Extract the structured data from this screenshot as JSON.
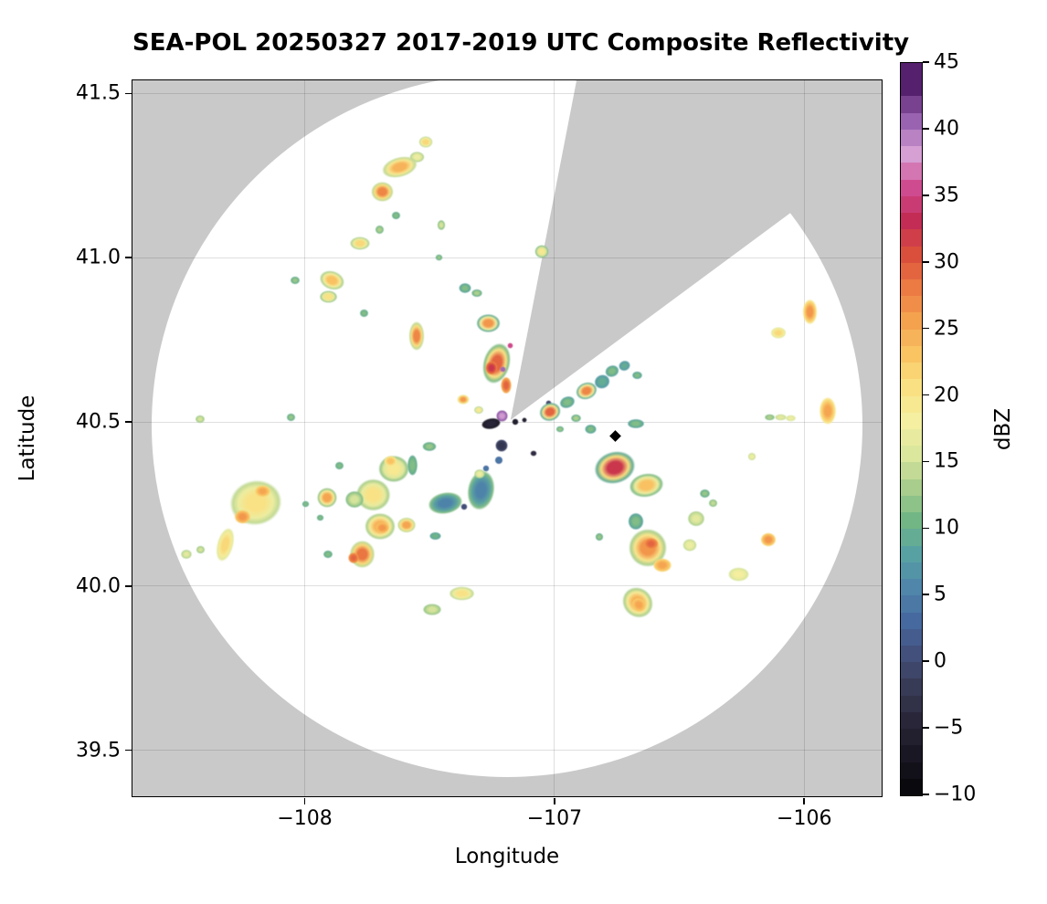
{
  "figure": {
    "title": "SEA-POL 20250327 2017-2019 UTC Composite Reflectivity"
  },
  "chart_data": {
    "type": "radar_ppi_composite",
    "title": "SEA-POL 20250327 2017-2019 UTC Composite Reflectivity",
    "xlabel": "Longitude",
    "ylabel": "Latitude",
    "x_range": [
      -108.69,
      -105.69
    ],
    "y_range": [
      39.36,
      41.54
    ],
    "x_ticks": [
      {
        "value": -108,
        "label": "−108"
      },
      {
        "value": -107,
        "label": "−107"
      },
      {
        "value": -106,
        "label": "−106"
      }
    ],
    "y_ticks": [
      {
        "value": 41.5,
        "label": "41.5"
      },
      {
        "value": 41.0,
        "label": "41.0"
      },
      {
        "value": 40.5,
        "label": "40.5"
      },
      {
        "value": 40.0,
        "label": "40.0"
      },
      {
        "value": 39.5,
        "label": "39.5"
      }
    ],
    "grid": true,
    "background_outside_scan": "#c9c9c9",
    "background_inside_scan": "#ffffff",
    "radar": {
      "center_lon": -107.19,
      "center_lat": 40.49,
      "scan_radius_px": 389,
      "blocked_sector": {
        "apex_lon": -107.176,
        "apex_lat": 40.506,
        "azimuth_start_deg": 11,
        "azimuth_end_deg": 53.5
      },
      "site_marker": {
        "symbol": "diamond",
        "lon": -106.758,
        "lat": 40.458,
        "color": "#000000"
      }
    },
    "colorbar": {
      "label": "dBZ",
      "vmin": -10,
      "vmax": 45,
      "step": 2.5,
      "ticks": [
        {
          "value": 45,
          "label": "45"
        },
        {
          "value": 40,
          "label": "40"
        },
        {
          "value": 35,
          "label": "35"
        },
        {
          "value": 30,
          "label": "30"
        },
        {
          "value": 25,
          "label": "25"
        },
        {
          "value": 20,
          "label": "20"
        },
        {
          "value": 15,
          "label": "15"
        },
        {
          "value": 10,
          "label": "10"
        },
        {
          "value": 5,
          "label": "5"
        },
        {
          "value": 0,
          "label": "0"
        },
        {
          "value": -5,
          "label": "−5"
        },
        {
          "value": -10,
          "label": "−10"
        }
      ],
      "colors": [
        "#0a090d",
        "#1a1724",
        "#29263a",
        "#383b56",
        "#43507c",
        "#46699f",
        "#4f86aa",
        "#58a1a3",
        "#72b685",
        "#a8cd8c",
        "#dbe79d",
        "#f4efa1",
        "#f9e183",
        "#fac463",
        "#f4a24e",
        "#ec7a43",
        "#da4f3c",
        "#c32c55",
        "#cf4b90",
        "#d6a0d4",
        "#9a63b1",
        "#55206e"
      ]
    },
    "echo_fields": [
      "lon",
      "lat",
      "width_px",
      "height_px",
      "core_dbz",
      "edge_dbz",
      "rotation_deg"
    ],
    "echoes": [
      [
        -107.516,
        41.353,
        15,
        13,
        22,
        15,
        0
      ],
      [
        -107.549,
        41.306,
        16,
        12,
        18,
        14,
        0
      ],
      [
        -107.619,
        41.275,
        40,
        22,
        25,
        15,
        -15
      ],
      [
        -107.689,
        41.2,
        24,
        22,
        28,
        15,
        0
      ],
      [
        -107.634,
        41.128,
        9,
        9,
        12,
        10,
        0
      ],
      [
        -107.7,
        41.086,
        10,
        9,
        14,
        11,
        0
      ],
      [
        -107.454,
        41.1,
        9,
        11,
        16,
        12,
        0
      ],
      [
        -107.78,
        41.044,
        22,
        15,
        22,
        14,
        0
      ],
      [
        -107.462,
        41.0,
        8,
        7,
        13,
        10,
        0
      ],
      [
        -107.051,
        41.019,
        15,
        15,
        20,
        12,
        0
      ],
      [
        -108.04,
        40.931,
        10,
        9,
        13,
        10,
        0
      ],
      [
        -107.89,
        40.931,
        28,
        20,
        24,
        14,
        20
      ],
      [
        -107.905,
        40.881,
        20,
        14,
        21,
        13,
        0
      ],
      [
        -107.762,
        40.831,
        9,
        9,
        12,
        10,
        0
      ],
      [
        -107.553,
        40.761,
        17,
        32,
        28,
        15,
        0
      ],
      [
        -105.978,
        40.836,
        16,
        28,
        27,
        20,
        0
      ],
      [
        -106.103,
        40.772,
        17,
        13,
        22,
        17,
        0
      ],
      [
        -107.359,
        40.908,
        14,
        11,
        12,
        9,
        0
      ],
      [
        -107.311,
        40.892,
        12,
        9,
        14,
        10,
        0
      ],
      [
        -107.264,
        40.8,
        26,
        20,
        27,
        10,
        0
      ],
      [
        -107.231,
        40.678,
        30,
        46,
        30,
        12,
        15
      ],
      [
        -107.253,
        40.664,
        14,
        16,
        33,
        28,
        0
      ],
      [
        -107.176,
        40.731,
        6,
        6,
        36,
        36,
        0
      ],
      [
        -107.205,
        40.661,
        6,
        6,
        41,
        41,
        0
      ],
      [
        -107.194,
        40.611,
        12,
        18,
        30,
        25,
        0
      ],
      [
        -107.366,
        40.569,
        13,
        11,
        27,
        18,
        0
      ],
      [
        -107.304,
        40.536,
        10,
        8,
        20,
        14,
        0
      ],
      [
        -107.209,
        40.519,
        13,
        13,
        39,
        42,
        0
      ],
      [
        -107.256,
        40.494,
        21,
        12,
        -4,
        -6,
        -10
      ],
      [
        -107.158,
        40.5,
        7,
        6,
        -5,
        -6,
        0
      ],
      [
        -107.121,
        40.506,
        5,
        5,
        -5,
        -5,
        0
      ],
      [
        -107.022,
        40.558,
        6,
        6,
        0,
        0,
        0
      ],
      [
        -107.007,
        40.539,
        5,
        5,
        1,
        1,
        0
      ],
      [
        -107.212,
        40.428,
        13,
        13,
        -2,
        0,
        0
      ],
      [
        -107.084,
        40.403,
        6,
        6,
        -3,
        -3,
        0
      ],
      [
        -107.223,
        40.383,
        8,
        8,
        5,
        4,
        0
      ],
      [
        -107.275,
        40.358,
        7,
        7,
        5,
        4,
        0
      ],
      [
        -107.018,
        40.531,
        24,
        20,
        30,
        10,
        -20
      ],
      [
        -106.949,
        40.558,
        17,
        13,
        12,
        9,
        -20
      ],
      [
        -106.872,
        40.594,
        24,
        19,
        28,
        10,
        -20
      ],
      [
        -106.81,
        40.622,
        17,
        15,
        10,
        8,
        -20
      ],
      [
        -106.769,
        40.653,
        15,
        13,
        12,
        9,
        -20
      ],
      [
        -106.718,
        40.672,
        13,
        11,
        10,
        8,
        -20
      ],
      [
        -106.67,
        40.642,
        11,
        9,
        12,
        9,
        0
      ],
      [
        -106.913,
        40.511,
        11,
        9,
        14,
        10,
        0
      ],
      [
        -106.854,
        40.478,
        13,
        10,
        12,
        9,
        0
      ],
      [
        -106.674,
        40.494,
        18,
        10,
        12,
        9,
        0
      ],
      [
        -106.978,
        40.478,
        9,
        7,
        13,
        10,
        0
      ],
      [
        -106.758,
        40.361,
        46,
        36,
        33,
        10,
        -15
      ],
      [
        -106.634,
        40.308,
        38,
        26,
        24,
        12,
        -10
      ],
      [
        -106.399,
        40.281,
        11,
        9,
        13,
        10,
        0
      ],
      [
        -106.366,
        40.253,
        9,
        8,
        15,
        12,
        0
      ],
      [
        -106.209,
        40.394,
        9,
        8,
        18,
        15,
        0
      ],
      [
        -106.674,
        40.197,
        17,
        19,
        12,
        9,
        0
      ],
      [
        -106.432,
        40.206,
        19,
        17,
        17,
        14,
        0
      ],
      [
        -106.821,
        40.15,
        9,
        8,
        13,
        10,
        0
      ],
      [
        -106.626,
        40.117,
        42,
        42,
        27,
        14,
        0
      ],
      [
        -106.615,
        40.128,
        16,
        13,
        30,
        27,
        0
      ],
      [
        -106.568,
        40.064,
        21,
        15,
        26,
        22,
        0
      ],
      [
        -106.458,
        40.125,
        15,
        13,
        18,
        15,
        0
      ],
      [
        -106.143,
        40.142,
        17,
        15,
        27,
        22,
        0
      ],
      [
        -106.264,
        40.036,
        23,
        15,
        19,
        16,
        0
      ],
      [
        -106.667,
        39.95,
        36,
        32,
        25,
        14,
        45
      ],
      [
        -106.663,
        39.942,
        16,
        14,
        26,
        23,
        45
      ],
      [
        -107.37,
        39.978,
        28,
        15,
        21,
        15,
        0
      ],
      [
        -107.49,
        39.928,
        20,
        13,
        16,
        13,
        0
      ],
      [
        -107.645,
        40.356,
        34,
        30,
        20,
        13,
        0
      ],
      [
        -107.656,
        40.381,
        14,
        12,
        24,
        20,
        0
      ],
      [
        -107.568,
        40.369,
        11,
        23,
        12,
        10,
        0
      ],
      [
        -107.502,
        40.425,
        15,
        11,
        13,
        10,
        0
      ],
      [
        -107.293,
        40.292,
        30,
        44,
        6,
        12,
        10
      ],
      [
        -107.3,
        40.342,
        12,
        10,
        18,
        14,
        0
      ],
      [
        -107.436,
        40.253,
        38,
        24,
        6,
        12,
        -10
      ],
      [
        -107.363,
        40.242,
        7,
        7,
        1,
        1,
        0
      ],
      [
        -107.476,
        40.153,
        13,
        9,
        11,
        9,
        0
      ],
      [
        -107.725,
        40.278,
        38,
        36,
        21,
        14,
        0
      ],
      [
        -107.7,
        40.181,
        34,
        30,
        25,
        14,
        0
      ],
      [
        -107.689,
        40.178,
        14,
        12,
        27,
        24,
        0
      ],
      [
        -107.593,
        40.186,
        20,
        17,
        26,
        15,
        0
      ],
      [
        -107.802,
        40.264,
        20,
        18,
        16,
        12,
        0
      ],
      [
        -107.912,
        40.269,
        22,
        22,
        26,
        13,
        0
      ],
      [
        -107.861,
        40.367,
        10,
        8,
        12,
        10,
        0
      ],
      [
        -107.908,
        40.097,
        10,
        9,
        12,
        10,
        0
      ],
      [
        -107.996,
        40.25,
        8,
        7,
        12,
        10,
        0
      ],
      [
        -107.938,
        40.208,
        8,
        7,
        12,
        10,
        0
      ],
      [
        -107.769,
        40.097,
        28,
        30,
        29,
        15,
        0
      ],
      [
        -107.806,
        40.086,
        12,
        12,
        30,
        27,
        0
      ],
      [
        -108.194,
        40.253,
        58,
        50,
        21,
        15,
        -10
      ],
      [
        -108.168,
        40.289,
        18,
        14,
        26,
        22,
        0
      ],
      [
        -108.249,
        40.211,
        18,
        16,
        27,
        23,
        0
      ],
      [
        -108.319,
        40.125,
        18,
        38,
        22,
        17,
        15
      ],
      [
        -108.418,
        40.111,
        9,
        8,
        16,
        13,
        0
      ],
      [
        -108.473,
        40.097,
        12,
        10,
        17,
        14,
        0
      ],
      [
        -108.418,
        40.508,
        10,
        9,
        16,
        13,
        0
      ],
      [
        -108.055,
        40.514,
        10,
        8,
        13,
        10,
        0
      ],
      [
        -106.139,
        40.514,
        11,
        7,
        14,
        12,
        0
      ],
      [
        -106.095,
        40.514,
        13,
        7,
        17,
        15,
        0
      ],
      [
        -106.055,
        40.511,
        11,
        7,
        18,
        16,
        0
      ],
      [
        -105.905,
        40.533,
        19,
        30,
        26,
        20,
        0
      ]
    ]
  }
}
